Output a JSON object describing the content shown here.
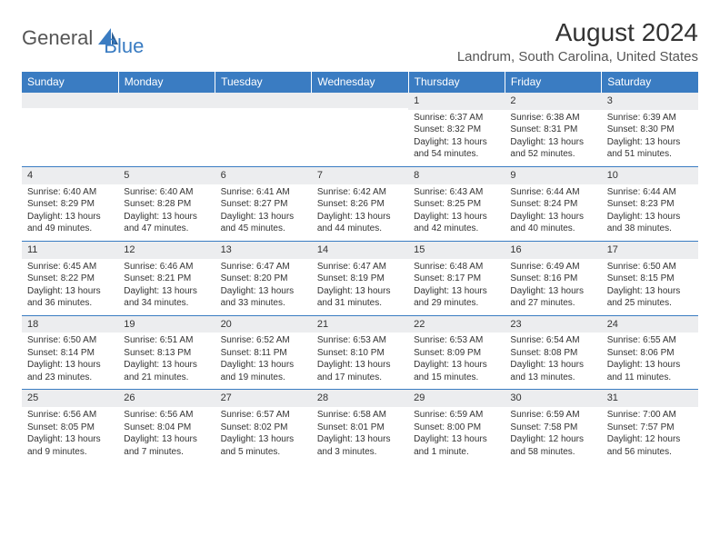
{
  "logo": {
    "text_general": "General",
    "text_blue": "Blue"
  },
  "title": "August 2024",
  "location": "Landrum, South Carolina, United States",
  "colors": {
    "header_bg": "#3a7cc2",
    "header_fg": "#ffffff",
    "daynum_bg": "#ecedef",
    "border": "#3a7cc2",
    "text": "#333333",
    "logo_gray": "#555555",
    "logo_blue": "#3a7cc2",
    "page_bg": "#ffffff"
  },
  "typography": {
    "title_fontsize": 28,
    "location_fontsize": 15,
    "header_fontsize": 12,
    "cell_fontsize": 10,
    "daynum_fontsize": 11,
    "logo_fontsize": 22
  },
  "weekdays": [
    "Sunday",
    "Monday",
    "Tuesday",
    "Wednesday",
    "Thursday",
    "Friday",
    "Saturday"
  ],
  "weeks": [
    [
      {
        "day": "",
        "sunrise": "",
        "sunset": "",
        "daylight": ""
      },
      {
        "day": "",
        "sunrise": "",
        "sunset": "",
        "daylight": ""
      },
      {
        "day": "",
        "sunrise": "",
        "sunset": "",
        "daylight": ""
      },
      {
        "day": "",
        "sunrise": "",
        "sunset": "",
        "daylight": ""
      },
      {
        "day": "1",
        "sunrise": "Sunrise: 6:37 AM",
        "sunset": "Sunset: 8:32 PM",
        "daylight": "Daylight: 13 hours and 54 minutes."
      },
      {
        "day": "2",
        "sunrise": "Sunrise: 6:38 AM",
        "sunset": "Sunset: 8:31 PM",
        "daylight": "Daylight: 13 hours and 52 minutes."
      },
      {
        "day": "3",
        "sunrise": "Sunrise: 6:39 AM",
        "sunset": "Sunset: 8:30 PM",
        "daylight": "Daylight: 13 hours and 51 minutes."
      }
    ],
    [
      {
        "day": "4",
        "sunrise": "Sunrise: 6:40 AM",
        "sunset": "Sunset: 8:29 PM",
        "daylight": "Daylight: 13 hours and 49 minutes."
      },
      {
        "day": "5",
        "sunrise": "Sunrise: 6:40 AM",
        "sunset": "Sunset: 8:28 PM",
        "daylight": "Daylight: 13 hours and 47 minutes."
      },
      {
        "day": "6",
        "sunrise": "Sunrise: 6:41 AM",
        "sunset": "Sunset: 8:27 PM",
        "daylight": "Daylight: 13 hours and 45 minutes."
      },
      {
        "day": "7",
        "sunrise": "Sunrise: 6:42 AM",
        "sunset": "Sunset: 8:26 PM",
        "daylight": "Daylight: 13 hours and 44 minutes."
      },
      {
        "day": "8",
        "sunrise": "Sunrise: 6:43 AM",
        "sunset": "Sunset: 8:25 PM",
        "daylight": "Daylight: 13 hours and 42 minutes."
      },
      {
        "day": "9",
        "sunrise": "Sunrise: 6:44 AM",
        "sunset": "Sunset: 8:24 PM",
        "daylight": "Daylight: 13 hours and 40 minutes."
      },
      {
        "day": "10",
        "sunrise": "Sunrise: 6:44 AM",
        "sunset": "Sunset: 8:23 PM",
        "daylight": "Daylight: 13 hours and 38 minutes."
      }
    ],
    [
      {
        "day": "11",
        "sunrise": "Sunrise: 6:45 AM",
        "sunset": "Sunset: 8:22 PM",
        "daylight": "Daylight: 13 hours and 36 minutes."
      },
      {
        "day": "12",
        "sunrise": "Sunrise: 6:46 AM",
        "sunset": "Sunset: 8:21 PM",
        "daylight": "Daylight: 13 hours and 34 minutes."
      },
      {
        "day": "13",
        "sunrise": "Sunrise: 6:47 AM",
        "sunset": "Sunset: 8:20 PM",
        "daylight": "Daylight: 13 hours and 33 minutes."
      },
      {
        "day": "14",
        "sunrise": "Sunrise: 6:47 AM",
        "sunset": "Sunset: 8:19 PM",
        "daylight": "Daylight: 13 hours and 31 minutes."
      },
      {
        "day": "15",
        "sunrise": "Sunrise: 6:48 AM",
        "sunset": "Sunset: 8:17 PM",
        "daylight": "Daylight: 13 hours and 29 minutes."
      },
      {
        "day": "16",
        "sunrise": "Sunrise: 6:49 AM",
        "sunset": "Sunset: 8:16 PM",
        "daylight": "Daylight: 13 hours and 27 minutes."
      },
      {
        "day": "17",
        "sunrise": "Sunrise: 6:50 AM",
        "sunset": "Sunset: 8:15 PM",
        "daylight": "Daylight: 13 hours and 25 minutes."
      }
    ],
    [
      {
        "day": "18",
        "sunrise": "Sunrise: 6:50 AM",
        "sunset": "Sunset: 8:14 PM",
        "daylight": "Daylight: 13 hours and 23 minutes."
      },
      {
        "day": "19",
        "sunrise": "Sunrise: 6:51 AM",
        "sunset": "Sunset: 8:13 PM",
        "daylight": "Daylight: 13 hours and 21 minutes."
      },
      {
        "day": "20",
        "sunrise": "Sunrise: 6:52 AM",
        "sunset": "Sunset: 8:11 PM",
        "daylight": "Daylight: 13 hours and 19 minutes."
      },
      {
        "day": "21",
        "sunrise": "Sunrise: 6:53 AM",
        "sunset": "Sunset: 8:10 PM",
        "daylight": "Daylight: 13 hours and 17 minutes."
      },
      {
        "day": "22",
        "sunrise": "Sunrise: 6:53 AM",
        "sunset": "Sunset: 8:09 PM",
        "daylight": "Daylight: 13 hours and 15 minutes."
      },
      {
        "day": "23",
        "sunrise": "Sunrise: 6:54 AM",
        "sunset": "Sunset: 8:08 PM",
        "daylight": "Daylight: 13 hours and 13 minutes."
      },
      {
        "day": "24",
        "sunrise": "Sunrise: 6:55 AM",
        "sunset": "Sunset: 8:06 PM",
        "daylight": "Daylight: 13 hours and 11 minutes."
      }
    ],
    [
      {
        "day": "25",
        "sunrise": "Sunrise: 6:56 AM",
        "sunset": "Sunset: 8:05 PM",
        "daylight": "Daylight: 13 hours and 9 minutes."
      },
      {
        "day": "26",
        "sunrise": "Sunrise: 6:56 AM",
        "sunset": "Sunset: 8:04 PM",
        "daylight": "Daylight: 13 hours and 7 minutes."
      },
      {
        "day": "27",
        "sunrise": "Sunrise: 6:57 AM",
        "sunset": "Sunset: 8:02 PM",
        "daylight": "Daylight: 13 hours and 5 minutes."
      },
      {
        "day": "28",
        "sunrise": "Sunrise: 6:58 AM",
        "sunset": "Sunset: 8:01 PM",
        "daylight": "Daylight: 13 hours and 3 minutes."
      },
      {
        "day": "29",
        "sunrise": "Sunrise: 6:59 AM",
        "sunset": "Sunset: 8:00 PM",
        "daylight": "Daylight: 13 hours and 1 minute."
      },
      {
        "day": "30",
        "sunrise": "Sunrise: 6:59 AM",
        "sunset": "Sunset: 7:58 PM",
        "daylight": "Daylight: 12 hours and 58 minutes."
      },
      {
        "day": "31",
        "sunrise": "Sunrise: 7:00 AM",
        "sunset": "Sunset: 7:57 PM",
        "daylight": "Daylight: 12 hours and 56 minutes."
      }
    ]
  ]
}
